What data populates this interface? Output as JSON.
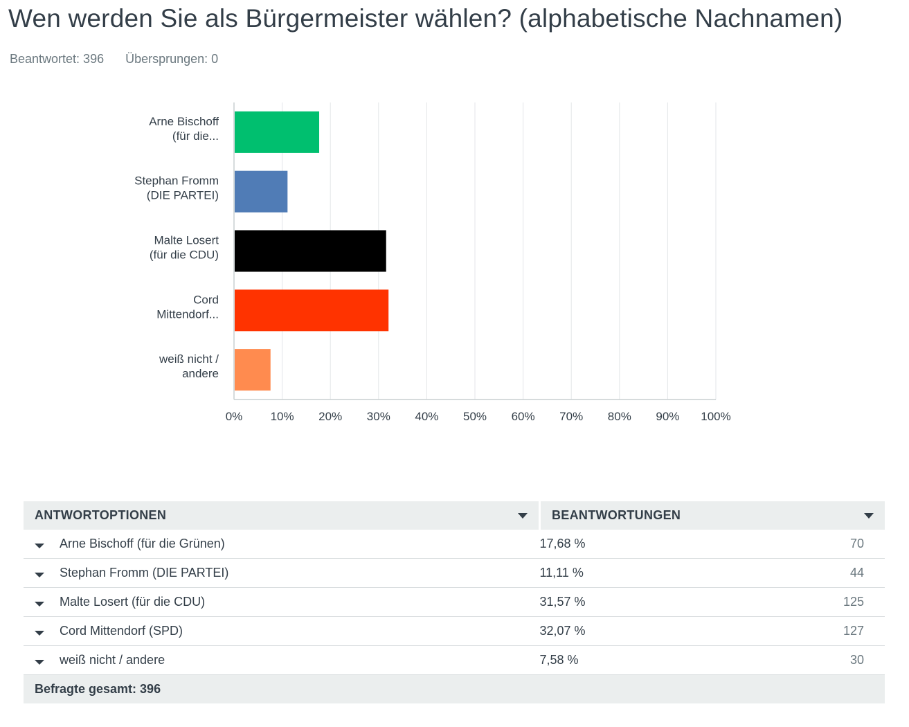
{
  "header": {
    "title": "Wen werden Sie als Bürgermeister wählen? (alphabetische Nachnamen)",
    "answered": "Beantwortet: 396",
    "skipped": "Übersprungen: 0"
  },
  "chart_data": {
    "type": "bar",
    "orientation": "horizontal",
    "categories": [
      [
        "Arne Bischoff",
        "(für die..."
      ],
      [
        "Stephan Fromm",
        "(DIE PARTEI)"
      ],
      [
        "Malte Losert",
        "(für die CDU)"
      ],
      [
        "Cord",
        "Mittendorf..."
      ],
      [
        "weiß nicht /",
        "andere"
      ]
    ],
    "values": [
      17.68,
      11.11,
      31.57,
      32.07,
      7.58
    ],
    "colors": [
      "#00bf6f",
      "#507cb6",
      "#000000",
      "#ff3300",
      "#ff8b4f"
    ],
    "xlim": [
      0,
      100
    ],
    "xticks": [
      "0%",
      "10%",
      "20%",
      "30%",
      "40%",
      "50%",
      "60%",
      "70%",
      "80%",
      "90%",
      "100%"
    ],
    "grid": true
  },
  "table": {
    "headers": {
      "options": "ANTWORTOPTIONEN",
      "responses": "BEANTWORTUNGEN"
    },
    "rows": [
      {
        "label": "Arne Bischoff (für die Grünen)",
        "percent": "17,68 %",
        "count": "70"
      },
      {
        "label": "Stephan Fromm (DIE PARTEI)",
        "percent": "11,11 %",
        "count": "44"
      },
      {
        "label": "Malte Losert (für die CDU)",
        "percent": "31,57 %",
        "count": "125"
      },
      {
        "label": "Cord Mittendorf (SPD)",
        "percent": "32,07 %",
        "count": "127"
      },
      {
        "label": "weiß nicht / andere",
        "percent": "7,58 %",
        "count": "30"
      }
    ],
    "total": "Befragte gesamt: 396"
  }
}
